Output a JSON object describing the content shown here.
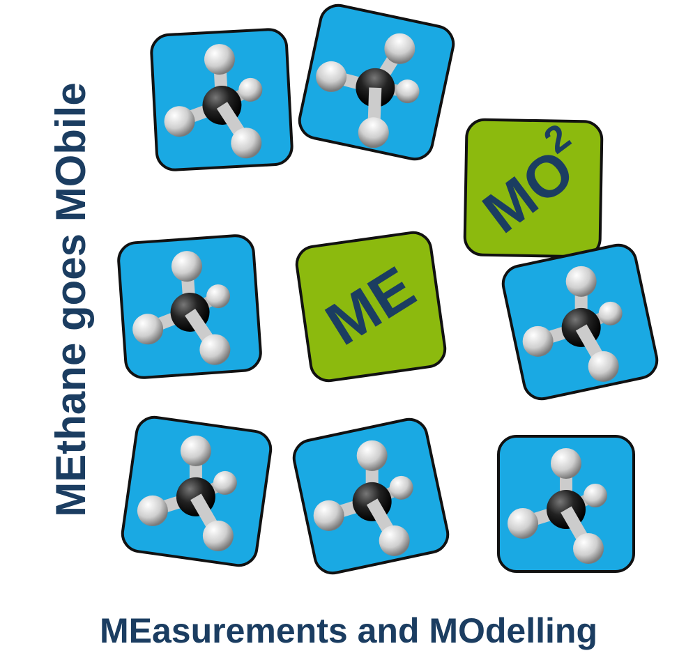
{
  "side_title": "MEthane goes MObile",
  "bottom_title": "MEasurements and MOdelling",
  "tiles": {
    "me": {
      "label": "ME"
    },
    "mo": {
      "label": "MO",
      "superscript": "2"
    }
  }
}
